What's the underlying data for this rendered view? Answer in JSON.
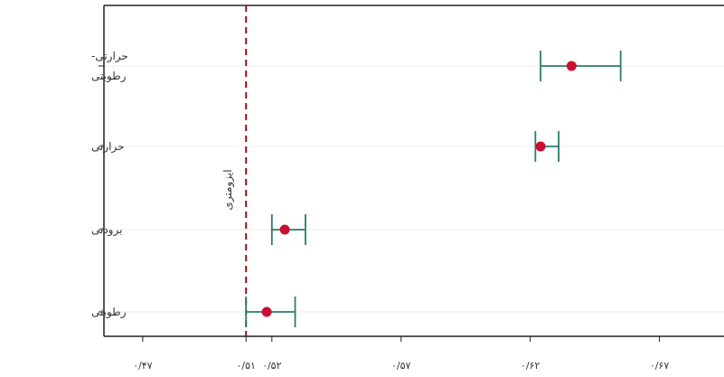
{
  "chart_data": {
    "type": "scatter",
    "title": "",
    "xlabel": "",
    "ylabel": "",
    "xlim": [
      0.455,
      0.695
    ],
    "grid": "horizontal",
    "legend": "none",
    "categories": [
      [
        "حرارتی-",
        "رطوبتی"
      ],
      [
        "حرارتی"
      ],
      [
        "برودتی"
      ],
      [
        "رطوبتی"
      ]
    ],
    "points": [
      {
        "estimate": 0.636,
        "lower": 0.624,
        "upper": 0.655
      },
      {
        "estimate": 0.624,
        "lower": 0.622,
        "upper": 0.631
      },
      {
        "estimate": 0.525,
        "lower": 0.52,
        "upper": 0.533
      },
      {
        "estimate": 0.518,
        "lower": 0.51,
        "upper": 0.529
      }
    ],
    "reference_line": {
      "value": 0.51,
      "label": "ایزومتری"
    },
    "x_ticks": [
      {
        "value": 0.47,
        "label": "۰/۴۷"
      },
      {
        "value": 0.51,
        "label": "۰/۵۱"
      },
      {
        "value": 0.52,
        "label": "۰/۵۲"
      },
      {
        "value": 0.57,
        "label": "۰/۵۷"
      },
      {
        "value": 0.62,
        "label": "۰/۶۲"
      },
      {
        "value": 0.67,
        "label": "۰/۶۷"
      }
    ],
    "colors": {
      "point": "#c8102e",
      "errorbar": "#2a7c6b",
      "reference": "#a01010",
      "grid": "#ececec",
      "axis": "#222222"
    }
  }
}
